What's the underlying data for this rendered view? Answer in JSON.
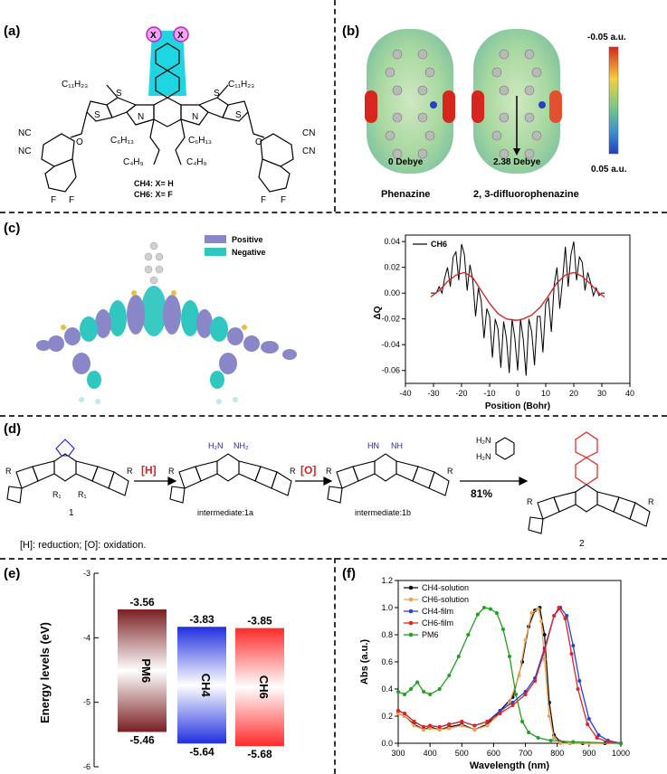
{
  "labels": {
    "a": "(a)",
    "b": "(b)",
    "c": "(c)",
    "d": "(d)",
    "e": "(e)",
    "f": "(f)"
  },
  "panel_a": {
    "substituent": "X",
    "alkyl_top_left": "C₁₁H₂₃",
    "alkyl_top_right": "C₁₁H₂₃",
    "alkyl_mid_left": "C₆H₁₃",
    "alkyl_mid_right": "C₆H₁₃",
    "alkyl_bot_left": "C₄H₉",
    "alkyl_bot_right": "C₄H₉",
    "cn": "CN",
    "nc": "NC",
    "o": "O",
    "f": "F",
    "s": "S",
    "n": "N",
    "legend_1": "CH4: X= H",
    "legend_2": "CH6: X= F"
  },
  "panel_b": {
    "label_left": "0 Debye",
    "label_right": "2.38 Debye",
    "name_left": "Phenazine",
    "name_right": "2, 3-difluorophenazine",
    "scale_top": "-0.05 a.u.",
    "scale_bottom": "0.05 a.u.",
    "colors": {
      "red": "#d7261e",
      "green": "#7fc97f",
      "blue": "#1f3fbf"
    }
  },
  "panel_c": {
    "legend_positive": "Positive",
    "legend_negative": "Negative",
    "positive_color": "#8a87c9",
    "negative_color": "#2fc7c0"
  },
  "panel_d": {
    "step1": "[H]",
    "step2": "[O]",
    "yield": "81%",
    "label_1": "1",
    "label_1a": "intermediate:1a",
    "label_1b": "intermediate:1b",
    "label_2": "2",
    "nh2_a": "H₂N",
    "nh2_b": "NH₂",
    "hn": "HN",
    "nh": "NH",
    "r": "R",
    "r1": "R₁",
    "footnote": "[H]: reduction; [O]: oxidation."
  },
  "chart_data": [
    {
      "type": "line",
      "panel": "c",
      "xlabel": "Position (Bohr)",
      "ylabel": "ΔQ",
      "xlim": [
        -40,
        40
      ],
      "ylim": [
        -0.07,
        0.045
      ],
      "xticks": [
        -40,
        -30,
        -20,
        -10,
        0,
        10,
        20,
        30,
        40
      ],
      "yticks": [
        0.04,
        0.02,
        0.0,
        -0.02,
        -0.04,
        -0.06
      ],
      "ytick_labels": [
        "0.04",
        "0.02",
        "0.00",
        "-0.02",
        "-0.04",
        "-0.06"
      ],
      "legend": "top-left",
      "series": [
        {
          "name": "CH6",
          "color": "#000000",
          "x": [
            -31,
            -30,
            -29,
            -28,
            -27,
            -26,
            -25,
            -24,
            -23,
            -22,
            -21,
            -20,
            -19,
            -18,
            -17,
            -16,
            -15,
            -14,
            -13,
            -12,
            -11,
            -10,
            -9,
            -8,
            -7,
            -6,
            -5,
            -4,
            -3,
            -2,
            -1,
            0,
            1,
            2,
            3,
            4,
            5,
            6,
            7,
            8,
            9,
            10,
            11,
            12,
            13,
            14,
            15,
            16,
            17,
            18,
            19,
            20,
            21,
            22,
            23,
            24,
            25,
            26,
            27,
            28,
            29,
            30,
            31
          ],
          "y": [
            0.0,
            0.0,
            0.0,
            0.005,
            0.0,
            0.012,
            0.02,
            0.005,
            0.028,
            0.032,
            0.01,
            0.038,
            0.03,
            0.002,
            0.022,
            0.01,
            -0.018,
            0.004,
            -0.006,
            -0.035,
            -0.012,
            -0.018,
            -0.05,
            -0.02,
            -0.028,
            -0.058,
            -0.022,
            -0.035,
            -0.062,
            -0.02,
            -0.035,
            -0.06,
            -0.02,
            -0.036,
            -0.064,
            -0.02,
            -0.03,
            -0.056,
            -0.018,
            -0.018,
            -0.046,
            -0.008,
            -0.004,
            -0.03,
            0.006,
            0.02,
            -0.012,
            0.01,
            0.036,
            0.005,
            0.03,
            0.04,
            0.01,
            0.028,
            0.024,
            0.002,
            0.016,
            0.008,
            -0.002,
            0.004,
            -0.002,
            0.0,
            0.0
          ]
        },
        {
          "name": "",
          "color": "#d62728",
          "x": [
            -31,
            -28,
            -25,
            -22,
            -19,
            -16,
            -13,
            -10,
            -7,
            -4,
            -1,
            0,
            2,
            5,
            8,
            11,
            14,
            17,
            20,
            23,
            26,
            29,
            31
          ],
          "y": [
            -0.003,
            0.002,
            0.009,
            0.014,
            0.016,
            0.012,
            0.002,
            -0.008,
            -0.016,
            -0.02,
            -0.021,
            -0.021,
            -0.02,
            -0.017,
            -0.011,
            -0.002,
            0.008,
            0.014,
            0.016,
            0.013,
            0.007,
            0.0,
            -0.003
          ]
        }
      ]
    },
    {
      "type": "bar",
      "panel": "e",
      "ylabel": "Energy levels (eV)",
      "ylim": [
        -6,
        -3
      ],
      "yticks": [
        -3,
        -4,
        -5,
        -6
      ],
      "categories": [
        "PM6",
        "CH4",
        "CH6"
      ],
      "lumo": [
        -3.56,
        -3.83,
        -3.85
      ],
      "homo": [
        -5.46,
        -5.64,
        -5.68
      ],
      "lumo_labels": [
        "-3.56",
        "-3.83",
        "-3.85"
      ],
      "homo_labels": [
        "-5.46",
        "-5.64",
        "-5.68"
      ],
      "colors": [
        "#7a1f22",
        "#2030e0",
        "#ff2a2a"
      ]
    },
    {
      "type": "line",
      "panel": "f",
      "xlabel": "Wavelength (nm)",
      "ylabel": "Abs (a.u.)",
      "xlim": [
        300,
        1000
      ],
      "ylim": [
        0.0,
        1.2
      ],
      "xticks": [
        300,
        400,
        500,
        600,
        700,
        800,
        900,
        1000
      ],
      "yticks": [
        0.0,
        0.2,
        0.4,
        0.6,
        0.8,
        1.0,
        1.2
      ],
      "ytick_labels": [
        "0.0",
        "0.2",
        "0.4",
        "0.6",
        "0.8",
        "1.0",
        "1.2"
      ],
      "legend": "top-left",
      "series": [
        {
          "name": "CH4-solution",
          "color": "#111111",
          "x": [
            300,
            320,
            350,
            380,
            400,
            430,
            460,
            500,
            540,
            580,
            620,
            660,
            690,
            710,
            730,
            745,
            760,
            775,
            790,
            810,
            840,
            880,
            950,
            1000
          ],
          "y": [
            0.22,
            0.2,
            0.14,
            0.1,
            0.12,
            0.1,
            0.12,
            0.14,
            0.1,
            0.14,
            0.24,
            0.34,
            0.6,
            0.86,
            0.98,
            1.0,
            0.8,
            0.3,
            0.06,
            0.01,
            0.0,
            0.0,
            0.0,
            0.0
          ]
        },
        {
          "name": "CH6-solution",
          "color": "#f0a050",
          "x": [
            300,
            320,
            350,
            380,
            400,
            430,
            460,
            500,
            540,
            580,
            620,
            650,
            680,
            700,
            720,
            740,
            750,
            760,
            775,
            790,
            810,
            840,
            900,
            1000
          ],
          "y": [
            0.22,
            0.2,
            0.13,
            0.1,
            0.11,
            0.1,
            0.11,
            0.13,
            0.1,
            0.13,
            0.22,
            0.3,
            0.5,
            0.76,
            0.96,
            0.99,
            0.9,
            0.62,
            0.2,
            0.04,
            0.0,
            0.0,
            0.0,
            0.0
          ]
        },
        {
          "name": "CH4-film",
          "color": "#2a3fd6",
          "x": [
            300,
            320,
            350,
            380,
            400,
            430,
            460,
            500,
            540,
            580,
            620,
            660,
            700,
            730,
            760,
            790,
            810,
            830,
            850,
            870,
            900,
            930,
            960,
            1000
          ],
          "y": [
            0.24,
            0.22,
            0.16,
            0.12,
            0.13,
            0.12,
            0.14,
            0.16,
            0.13,
            0.16,
            0.24,
            0.3,
            0.38,
            0.48,
            0.7,
            0.94,
            1.0,
            0.94,
            0.72,
            0.46,
            0.18,
            0.06,
            0.02,
            0.0
          ]
        },
        {
          "name": "CH6-film",
          "color": "#e62020",
          "x": [
            300,
            320,
            350,
            380,
            400,
            430,
            460,
            500,
            540,
            580,
            620,
            660,
            700,
            730,
            760,
            790,
            805,
            825,
            845,
            865,
            895,
            925,
            960,
            1000
          ],
          "y": [
            0.24,
            0.22,
            0.16,
            0.12,
            0.13,
            0.12,
            0.14,
            0.16,
            0.13,
            0.16,
            0.22,
            0.28,
            0.36,
            0.46,
            0.68,
            0.94,
            1.0,
            0.92,
            0.66,
            0.4,
            0.14,
            0.04,
            0.01,
            0.0
          ]
        },
        {
          "name": "PM6",
          "color": "#20a020",
          "x": [
            300,
            320,
            340,
            360,
            380,
            400,
            430,
            460,
            490,
            520,
            550,
            570,
            590,
            610,
            630,
            650,
            670,
            690,
            710,
            740,
            780,
            850,
            1000
          ],
          "y": [
            0.38,
            0.36,
            0.4,
            0.45,
            0.38,
            0.36,
            0.4,
            0.5,
            0.64,
            0.8,
            0.95,
            1.0,
            0.99,
            0.96,
            0.84,
            0.64,
            0.36,
            0.16,
            0.08,
            0.04,
            0.02,
            0.01,
            0.0
          ]
        }
      ]
    }
  ]
}
